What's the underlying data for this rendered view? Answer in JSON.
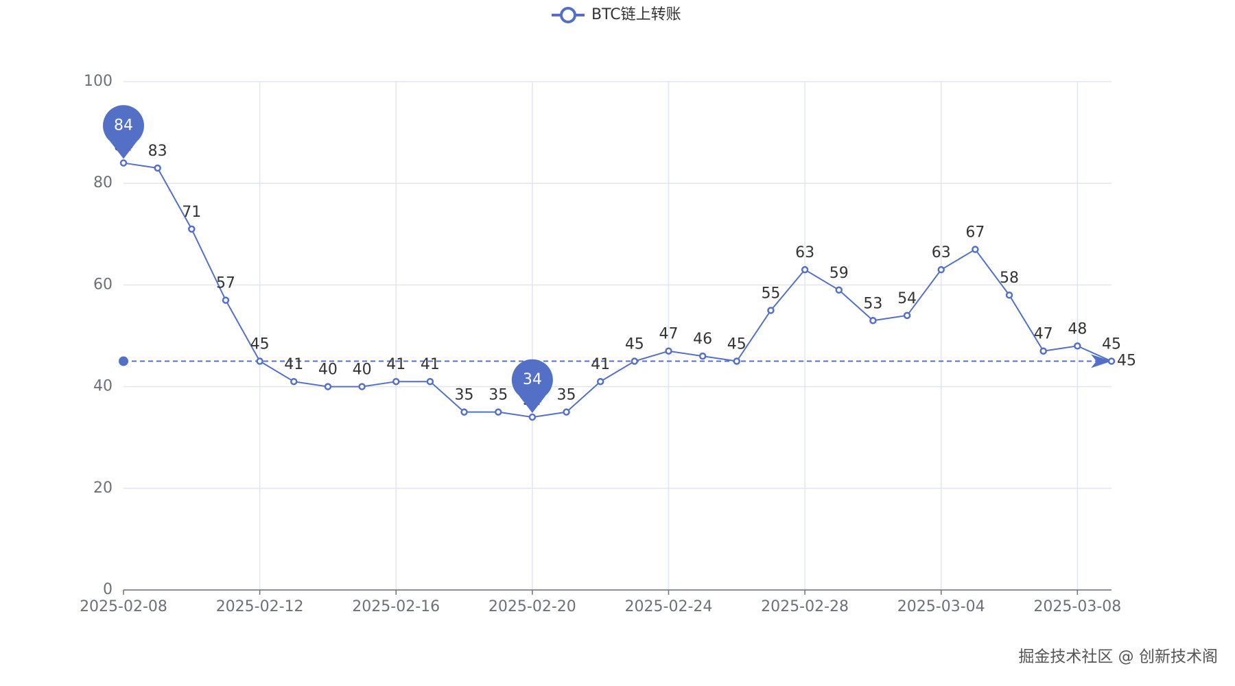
{
  "chart_data": {
    "type": "line",
    "categories": [
      "2025-02-08",
      null,
      null,
      null,
      "2025-02-12",
      null,
      null,
      null,
      "2025-02-16",
      null,
      null,
      null,
      "2025-02-20",
      null,
      null,
      null,
      "2025-02-24",
      null,
      null,
      null,
      "2025-02-28",
      null,
      null,
      null,
      "2025-03-04",
      null,
      null,
      null,
      "2025-03-08",
      null
    ],
    "series": [
      {
        "name": "BTC链上转账",
        "color": "#5470c6",
        "values": [
          84,
          83,
          71,
          57,
          45,
          41,
          40,
          40,
          41,
          41,
          35,
          35,
          34,
          35,
          41,
          45,
          47,
          46,
          45,
          55,
          63,
          59,
          53,
          54,
          63,
          67,
          58,
          47,
          48,
          45
        ]
      }
    ],
    "ylim": [
      0,
      100
    ],
    "yticks": [
      0,
      20,
      40,
      60,
      80,
      100
    ],
    "grid": true,
    "mark_points": [
      84,
      34
    ],
    "mark_line": 45,
    "watermark": "掘金技术社区 @ 创新技术阁"
  }
}
